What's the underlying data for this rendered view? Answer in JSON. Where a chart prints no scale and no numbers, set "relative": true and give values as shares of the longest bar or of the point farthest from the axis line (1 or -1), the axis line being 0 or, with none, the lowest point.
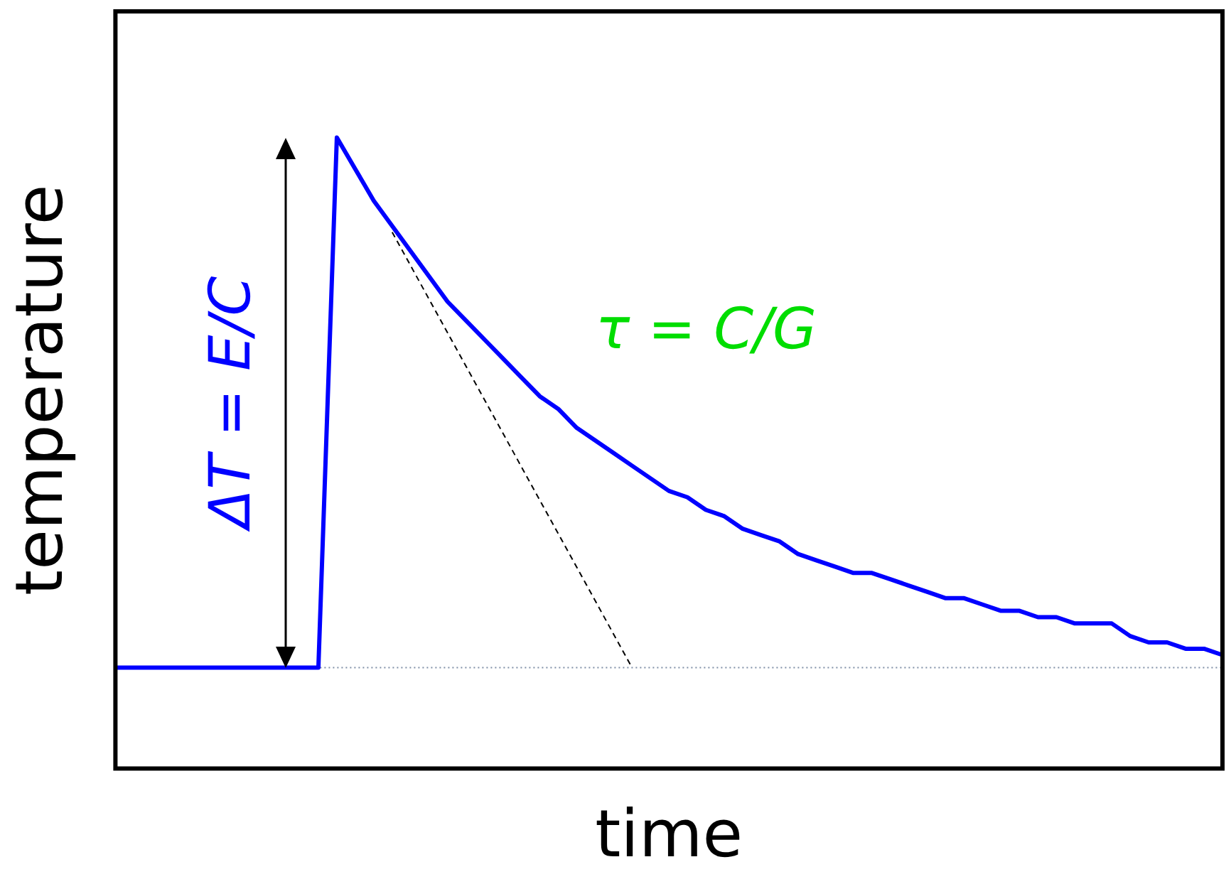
{
  "chart_data": {
    "type": "line",
    "relative": true,
    "xlabel": "time",
    "ylabel": "temperature",
    "tick_labels": false,
    "legend": false,
    "grid": false,
    "marker": "none",
    "categories": [
      null,
      null,
      null,
      null,
      null,
      null,
      null,
      null,
      null,
      null,
      null,
      null,
      null,
      null,
      null,
      null,
      null,
      null,
      null,
      null,
      null,
      null,
      null,
      null,
      null,
      null,
      null,
      null,
      null,
      null,
      null,
      null,
      null,
      null,
      null,
      null,
      null,
      null,
      null,
      null,
      null,
      null,
      null,
      null,
      null,
      null,
      null,
      null,
      null,
      null,
      null,
      null,
      null,
      null,
      null,
      null,
      null,
      null,
      null,
      null,
      null
    ],
    "series": [
      {
        "color": "#0000ff",
        "line_style": "solid",
        "values": [
          0.16,
          0.16,
          0.16,
          0.16,
          0.16,
          0.16,
          0.16,
          0.16,
          0.16,
          0.16,
          0.16,
          0.16,
          1.0,
          0.95,
          0.9,
          0.86,
          0.82,
          0.78,
          0.74,
          0.71,
          0.68,
          0.65,
          0.62,
          0.59,
          0.57,
          0.54,
          0.52,
          0.5,
          0.48,
          0.46,
          0.44,
          0.43,
          0.41,
          0.4,
          0.38,
          0.37,
          0.36,
          0.34,
          0.33,
          0.32,
          0.31,
          0.31,
          0.3,
          0.29,
          0.28,
          0.27,
          0.27,
          0.26,
          0.25,
          0.25,
          0.24,
          0.24,
          0.23,
          0.23,
          0.23,
          0.21,
          0.2,
          0.2,
          0.19,
          0.19,
          0.18
        ]
      },
      {
        "type": "line",
        "color": "#000000",
        "line_style": "dashed",
        "values": [
          null,
          null,
          null,
          null,
          null,
          null,
          null,
          null,
          null,
          null,
          null,
          null,
          null,
          null,
          null,
          0.85,
          null,
          null,
          null,
          null,
          null,
          null,
          null,
          null,
          null,
          null,
          null,
          null,
          0.16,
          null,
          null,
          null,
          null,
          null,
          null,
          null,
          null,
          null,
          null,
          null,
          null,
          null,
          null,
          null,
          null,
          null,
          null,
          null,
          null,
          null,
          null,
          null,
          null,
          null,
          null,
          null,
          null,
          null,
          null,
          null,
          null
        ]
      }
    ],
    "ref_lines": [
      {
        "axis": "y",
        "value": 0.16,
        "color": "#7f8fa6",
        "line_style": "dotted"
      }
    ],
    "annotations": [
      "ΔT = E/C",
      "τ = C/G"
    ]
  }
}
